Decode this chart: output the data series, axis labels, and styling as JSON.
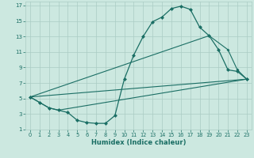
{
  "xlabel": "Humidex (Indice chaleur)",
  "bg_color": "#cce8e0",
  "grid_color": "#aaccc4",
  "line_color": "#1a6e64",
  "xlim": [
    -0.5,
    23.5
  ],
  "ylim": [
    1,
    17.5
  ],
  "xticks": [
    0,
    1,
    2,
    3,
    4,
    5,
    6,
    7,
    8,
    9,
    10,
    11,
    12,
    13,
    14,
    15,
    16,
    17,
    18,
    19,
    20,
    21,
    22,
    23
  ],
  "yticks": [
    1,
    3,
    5,
    7,
    9,
    11,
    13,
    15,
    17
  ],
  "line1_x": [
    0,
    1,
    2,
    3,
    4,
    5,
    6,
    7,
    8,
    9,
    10,
    11,
    12,
    13,
    14,
    15,
    16,
    17,
    18,
    19,
    20,
    21,
    22,
    23
  ],
  "line1_y": [
    5.2,
    4.5,
    3.8,
    3.5,
    3.2,
    2.2,
    1.9,
    1.8,
    1.8,
    2.8,
    7.5,
    10.6,
    13.0,
    14.9,
    15.5,
    16.6,
    16.9,
    16.5,
    14.2,
    13.1,
    11.3,
    8.7,
    8.5,
    7.5
  ],
  "line2_x": [
    0,
    1,
    2,
    3,
    23
  ],
  "line2_y": [
    5.2,
    4.5,
    3.8,
    3.5,
    7.5
  ],
  "line3_x": [
    0,
    19,
    21,
    22,
    23
  ],
  "line3_y": [
    5.2,
    13.1,
    11.3,
    8.7,
    7.5
  ],
  "line4_x": [
    0,
    23
  ],
  "line4_y": [
    5.2,
    7.5
  ]
}
